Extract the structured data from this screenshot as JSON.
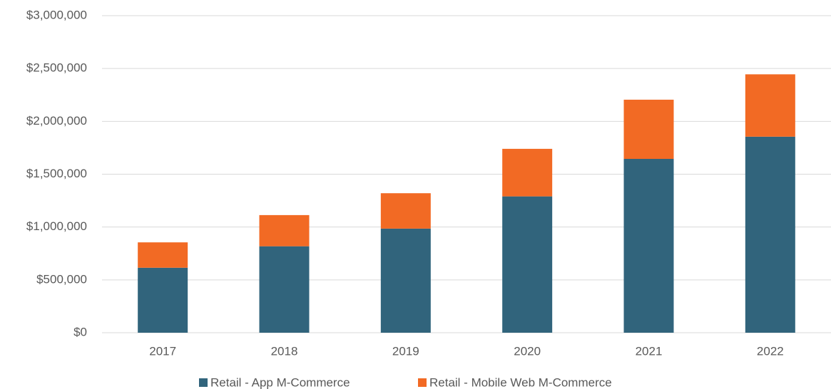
{
  "chart_data": {
    "type": "stacked_bar",
    "categories": [
      "2017",
      "2018",
      "2019",
      "2020",
      "2021",
      "2022"
    ],
    "series": [
      {
        "name": "Retail - App M-Commerce",
        "color": "#31647c",
        "values": [
          615000,
          818000,
          985000,
          1290000,
          1645000,
          1855000
        ]
      },
      {
        "name": "Retail - Mobile Web M-Commerce",
        "color": "#f26a24",
        "values": [
          240000,
          295000,
          335000,
          450000,
          560000,
          590000
        ]
      }
    ],
    "ylim": [
      0,
      3000000
    ],
    "yticks": [
      {
        "value": 0,
        "label": "$0"
      },
      {
        "value": 500000,
        "label": "$500,000"
      },
      {
        "value": 1000000,
        "label": "$1,000,000"
      },
      {
        "value": 1500000,
        "label": "$1,500,000"
      },
      {
        "value": 2000000,
        "label": "$2,000,000"
      },
      {
        "value": 2500000,
        "label": "$2,500,000"
      },
      {
        "value": 3000000,
        "label": "$3,000,000"
      }
    ],
    "grid": true,
    "legend": "bottom"
  }
}
